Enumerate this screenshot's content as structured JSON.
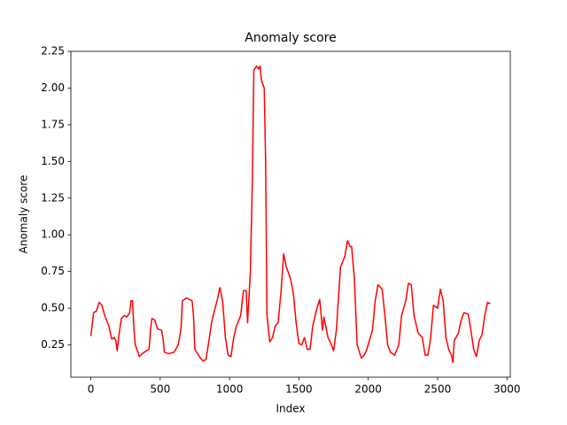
{
  "chart_data": {
    "type": "line",
    "title": "Anomaly score",
    "x_label": "Index",
    "y_label": "Anomaly score",
    "xlim": [
      -144,
      3024
    ],
    "ylim": [
      0.03,
      2.25
    ],
    "xticks": [
      0,
      500,
      1000,
      1500,
      2000,
      2500,
      3000
    ],
    "yticks": [
      0.25,
      {
        "value": 0.5,
        "label": "0.50"
      },
      0.75,
      {
        "value": 1.0,
        "label": "1.00"
      },
      1.25,
      {
        "value": 1.5,
        "label": "1.50"
      },
      1.75,
      {
        "value": 2.0,
        "label": "2.00"
      },
      2.25
    ],
    "x": [
      0,
      20,
      40,
      60,
      80,
      100,
      130,
      150,
      170,
      180,
      190,
      200,
      220,
      240,
      260,
      280,
      290,
      300,
      310,
      320,
      340,
      350,
      370,
      400,
      420,
      430,
      440,
      460,
      480,
      510,
      520,
      530,
      560,
      600,
      630,
      650,
      660,
      690,
      730,
      740,
      750,
      770,
      790,
      810,
      830,
      850,
      870,
      890,
      910,
      930,
      950,
      970,
      990,
      1010,
      1030,
      1050,
      1080,
      1100,
      1120,
      1130,
      1150,
      1165,
      1175,
      1195,
      1210,
      1220,
      1230,
      1250,
      1260,
      1270,
      1290,
      1310,
      1330,
      1350,
      1370,
      1390,
      1410,
      1440,
      1460,
      1480,
      1500,
      1520,
      1540,
      1560,
      1580,
      1600,
      1630,
      1650,
      1670,
      1680,
      1710,
      1730,
      1750,
      1770,
      1800,
      1830,
      1850,
      1870,
      1880,
      1900,
      1920,
      1950,
      1970,
      1990,
      2030,
      2050,
      2070,
      2100,
      2120,
      2140,
      2160,
      2190,
      2220,
      2240,
      2270,
      2290,
      2310,
      2330,
      2360,
      2390,
      2410,
      2430,
      2450,
      2470,
      2500,
      2520,
      2540,
      2560,
      2580,
      2600,
      2610,
      2620,
      2650,
      2670,
      2690,
      2720,
      2740,
      2760,
      2780,
      2800,
      2820,
      2840,
      2860,
      2880
    ],
    "series": [
      {
        "color": "#ff0000",
        "values": [
          0.31,
          0.47,
          0.48,
          0.54,
          0.52,
          0.45,
          0.38,
          0.29,
          0.3,
          0.28,
          0.21,
          0.3,
          0.43,
          0.45,
          0.44,
          0.47,
          0.55,
          0.55,
          0.37,
          0.25,
          0.2,
          0.17,
          0.19,
          0.21,
          0.22,
          0.35,
          0.43,
          0.42,
          0.36,
          0.35,
          0.3,
          0.2,
          0.19,
          0.2,
          0.25,
          0.36,
          0.55,
          0.57,
          0.55,
          0.45,
          0.22,
          0.19,
          0.16,
          0.14,
          0.15,
          0.27,
          0.4,
          0.48,
          0.55,
          0.64,
          0.55,
          0.3,
          0.18,
          0.17,
          0.3,
          0.38,
          0.45,
          0.62,
          0.62,
          0.4,
          0.75,
          1.4,
          2.12,
          2.15,
          2.13,
          2.15,
          2.05,
          2.0,
          1.5,
          0.45,
          0.27,
          0.3,
          0.38,
          0.4,
          0.6,
          0.87,
          0.78,
          0.7,
          0.6,
          0.4,
          0.26,
          0.25,
          0.3,
          0.22,
          0.22,
          0.38,
          0.5,
          0.56,
          0.35,
          0.44,
          0.3,
          0.26,
          0.21,
          0.35,
          0.78,
          0.85,
          0.96,
          0.92,
          0.92,
          0.7,
          0.25,
          0.16,
          0.18,
          0.22,
          0.35,
          0.55,
          0.66,
          0.63,
          0.45,
          0.25,
          0.2,
          0.18,
          0.25,
          0.45,
          0.55,
          0.67,
          0.66,
          0.45,
          0.33,
          0.3,
          0.18,
          0.18,
          0.3,
          0.52,
          0.5,
          0.63,
          0.55,
          0.3,
          0.22,
          0.18,
          0.13,
          0.28,
          0.33,
          0.42,
          0.47,
          0.46,
          0.35,
          0.22,
          0.17,
          0.28,
          0.32,
          0.45,
          0.54,
          0.53
        ]
      }
    ]
  }
}
